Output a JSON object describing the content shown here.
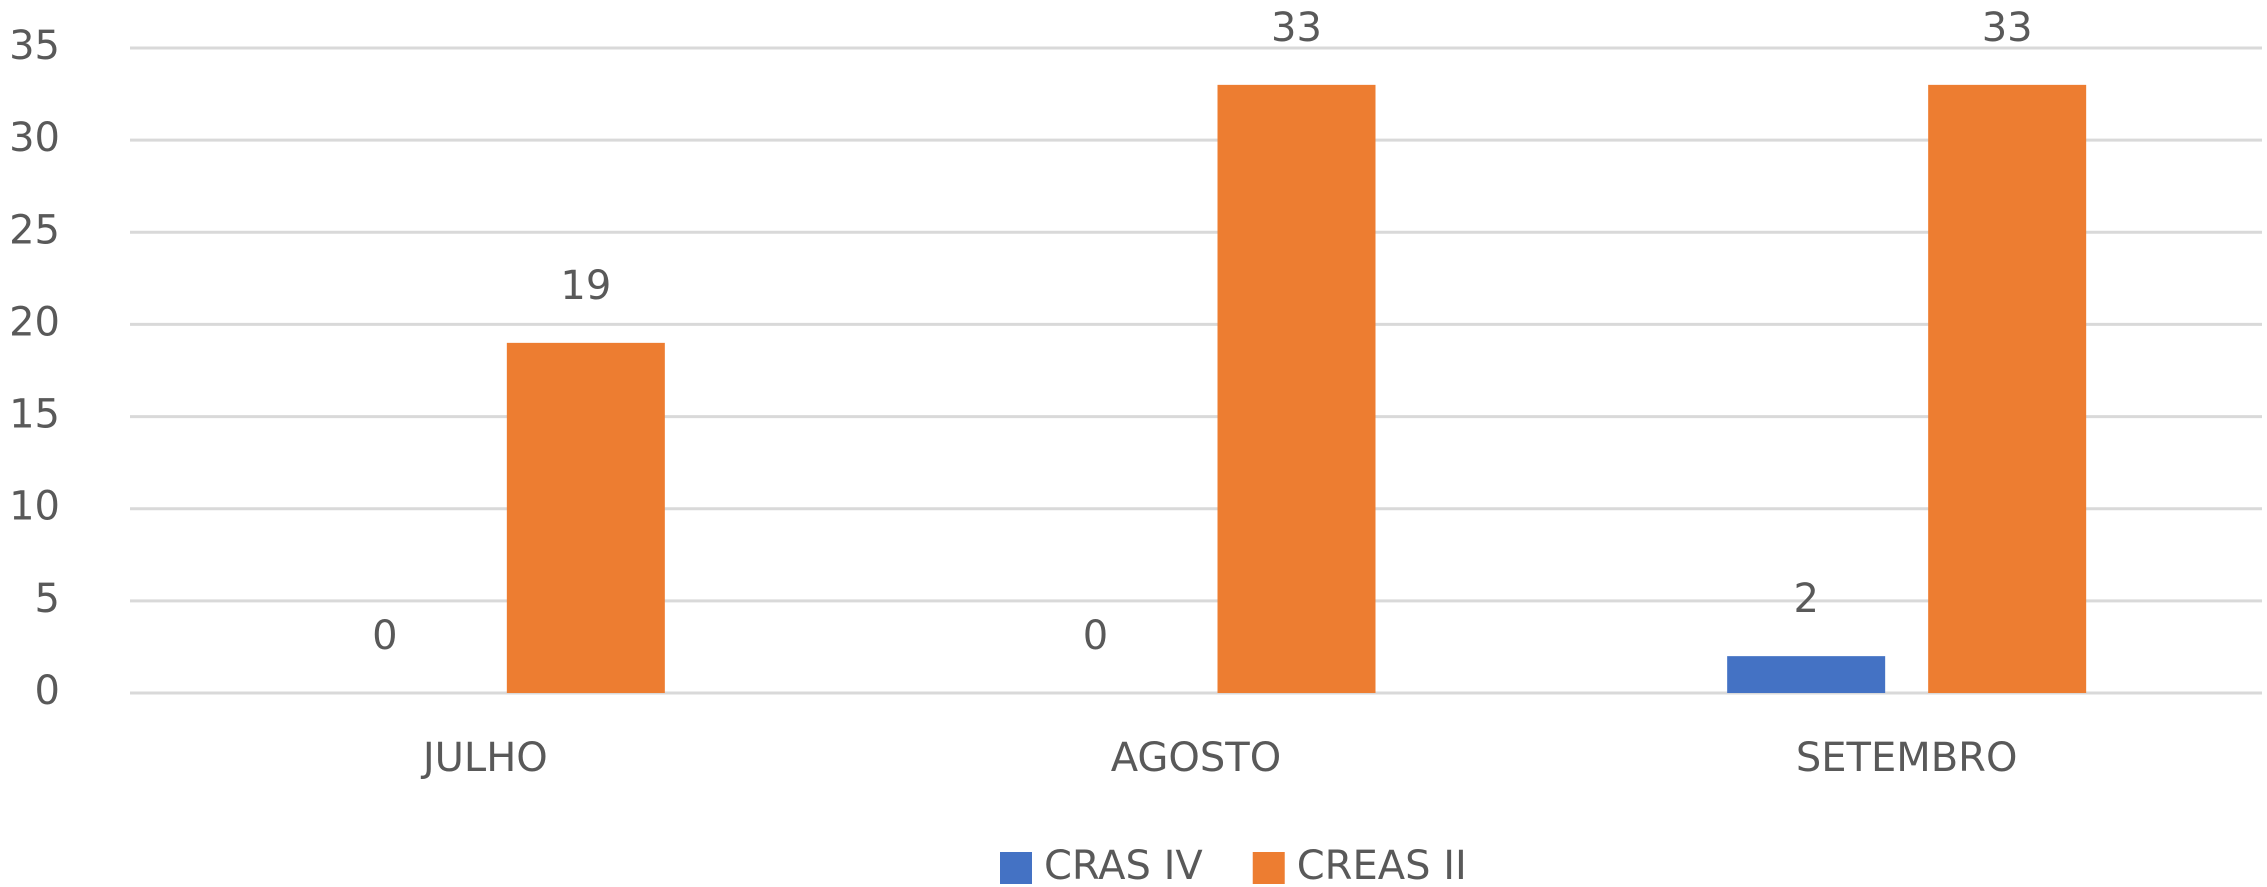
{
  "chart_data": {
    "type": "bar",
    "categories": [
      "JULHO",
      "AGOSTO",
      "SETEMBRO"
    ],
    "series": [
      {
        "name": "CRAS IV",
        "color": "#4472c4",
        "values": [
          0,
          0,
          2
        ]
      },
      {
        "name": "CREAS II",
        "color": "#ed7d31",
        "values": [
          19,
          33,
          33
        ]
      }
    ],
    "ylim": [
      0,
      35
    ],
    "yticks": [
      0,
      5,
      10,
      15,
      20,
      25,
      30,
      35
    ],
    "grid": true,
    "legend": "bottom"
  }
}
